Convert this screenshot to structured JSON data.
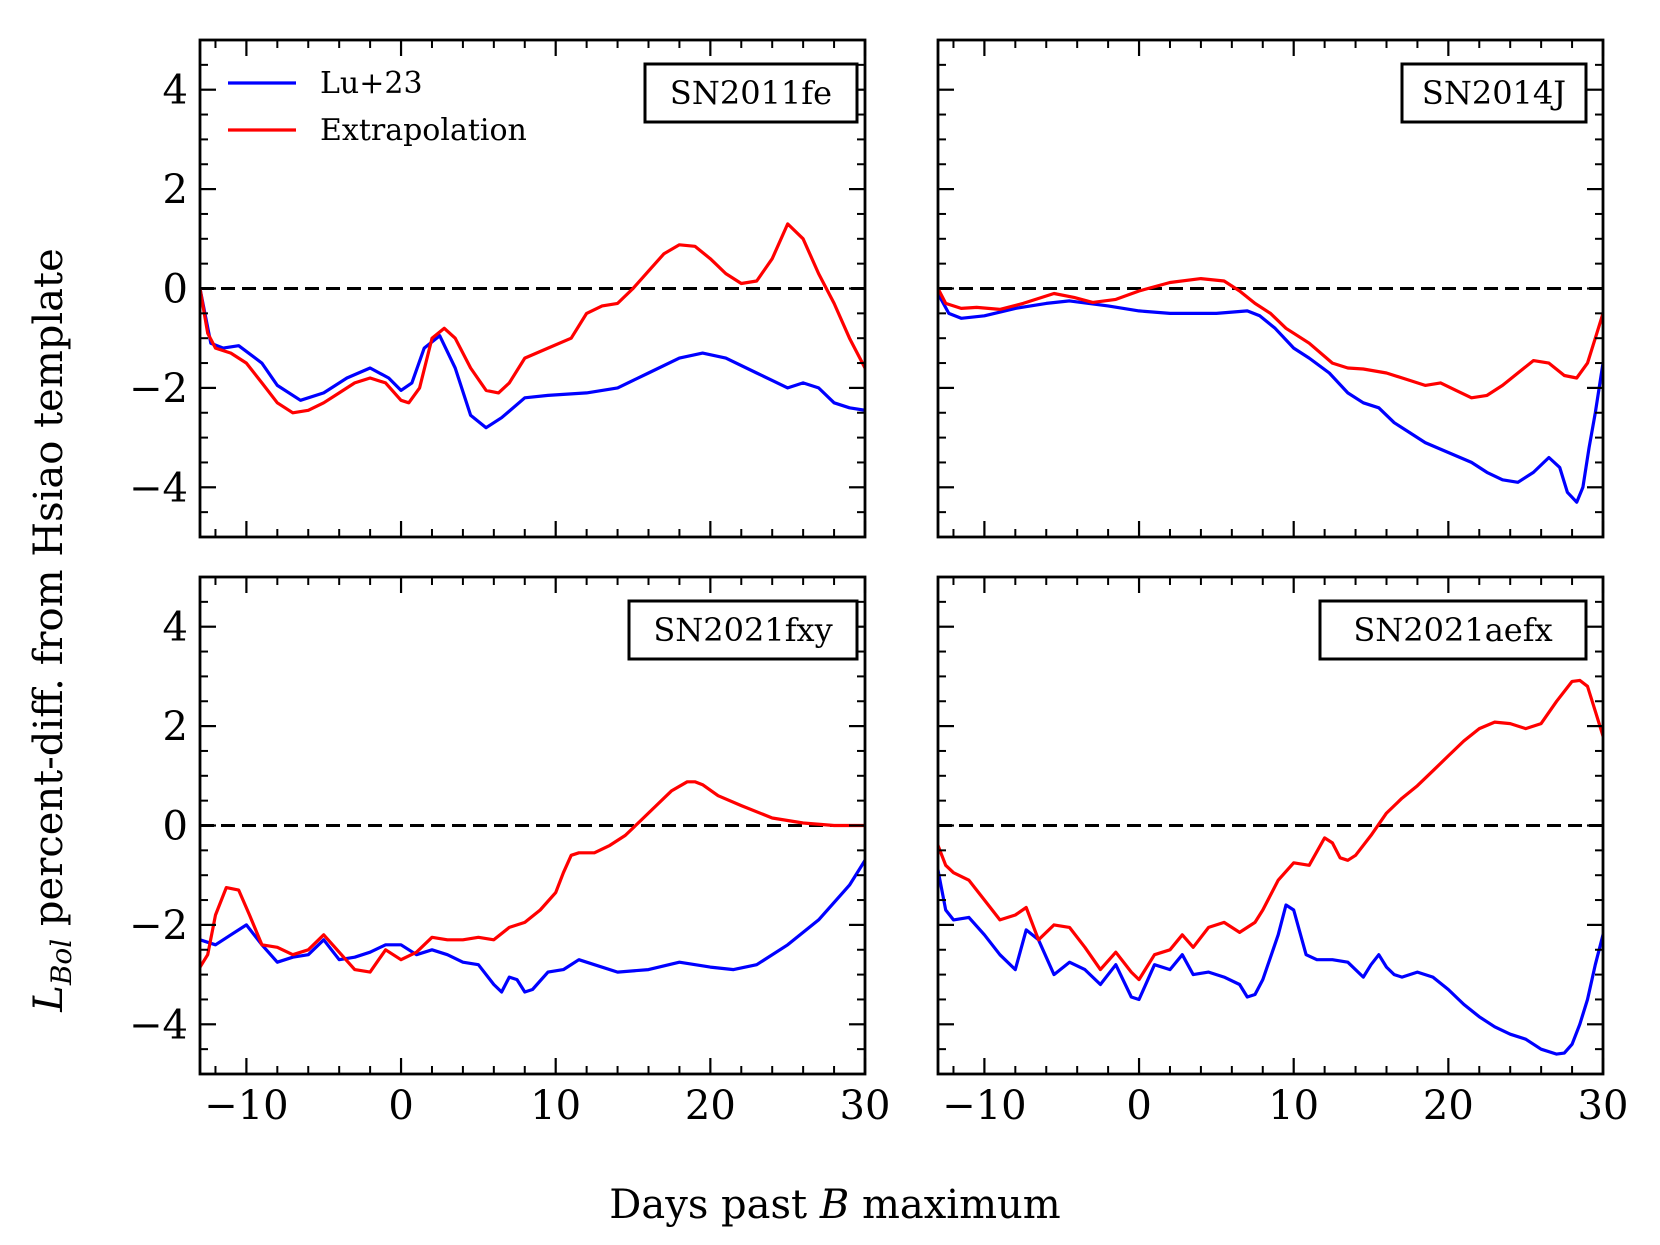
{
  "chart_data": {
    "type": "line",
    "layout": "2x2 grid, shared x and y axes",
    "xlabel_parts": [
      "Days past ",
      "B",
      " maximum"
    ],
    "ylabel_parts": [
      "L",
      "Bol",
      " percent-diff. from Hsiao template"
    ],
    "xlim": [
      -13,
      30
    ],
    "ylim": [
      -5,
      5
    ],
    "xticks": [
      -10,
      0,
      10,
      20,
      30
    ],
    "xtick_labels": [
      "−10",
      "0",
      "10",
      "20",
      "30"
    ],
    "yticks": [
      -4,
      -2,
      0,
      2,
      4
    ],
    "ytick_labels": [
      "−4",
      "−2",
      "0",
      "2",
      "4"
    ],
    "reference_line": {
      "y": 0,
      "style": "dashed",
      "color": "#000000"
    },
    "legend": {
      "location": "top-left of first panel",
      "entries": [
        {
          "label": "Lu+23",
          "color": "#0000ff"
        },
        {
          "label": "Extrapolation",
          "color": "#ff0000"
        }
      ]
    },
    "panels": [
      {
        "label": "SN2011fe",
        "series": [
          {
            "name": "Lu+23",
            "color": "#0000ff",
            "x": [
              -13,
              -12.3,
              -11.5,
              -10.5,
              -9,
              -8,
              -6.5,
              -5,
              -3.5,
              -2,
              -0.8,
              0,
              0.7,
              1.5,
              2.5,
              3.5,
              4.5,
              5.5,
              6.5,
              8,
              9.5,
              12,
              14,
              16,
              18,
              19.5,
              21,
              23,
              25,
              26,
              27,
              28,
              29,
              30
            ],
            "y": [
              0,
              -1.1,
              -1.2,
              -1.15,
              -1.5,
              -1.95,
              -2.25,
              -2.1,
              -1.8,
              -1.6,
              -1.8,
              -2.05,
              -1.9,
              -1.2,
              -0.95,
              -1.6,
              -2.55,
              -2.8,
              -2.6,
              -2.2,
              -2.15,
              -2.1,
              -2.0,
              -1.7,
              -1.4,
              -1.3,
              -1.4,
              -1.7,
              -2.0,
              -1.9,
              -2.0,
              -2.3,
              -2.4,
              -2.45
            ]
          },
          {
            "name": "Extrapolation",
            "color": "#ff0000",
            "x": [
              -13,
              -12.5,
              -12,
              -11,
              -10,
              -9,
              -8,
              -7,
              -6,
              -5,
              -4,
              -3,
              -2,
              -1,
              0,
              0.5,
              1.2,
              2,
              2.8,
              3.5,
              4.5,
              5.5,
              6.3,
              7,
              8,
              9.5,
              11,
              12,
              13,
              14,
              15,
              16,
              17,
              18,
              19,
              20,
              21,
              22,
              23,
              24,
              25,
              26,
              27,
              28,
              29,
              30
            ],
            "y": [
              0,
              -0.9,
              -1.2,
              -1.3,
              -1.5,
              -1.9,
              -2.3,
              -2.5,
              -2.45,
              -2.3,
              -2.1,
              -1.9,
              -1.8,
              -1.9,
              -2.25,
              -2.3,
              -2.0,
              -1.0,
              -0.8,
              -1.0,
              -1.6,
              -2.05,
              -2.1,
              -1.9,
              -1.4,
              -1.2,
              -1.0,
              -0.5,
              -0.35,
              -0.3,
              0.0,
              0.35,
              0.7,
              0.88,
              0.85,
              0.6,
              0.3,
              0.1,
              0.15,
              0.6,
              1.3,
              1.0,
              0.3,
              -0.3,
              -1.0,
              -1.6
            ]
          }
        ]
      },
      {
        "label": "SN2014J",
        "series": [
          {
            "name": "Lu+23",
            "color": "#0000ff",
            "x": [
              -13,
              -12.3,
              -11.5,
              -10,
              -8,
              -6,
              -4.5,
              -2,
              0,
              2,
              5,
              7,
              7.8,
              8.8,
              10,
              11,
              12.3,
              13.5,
              14.5,
              15.5,
              16.5,
              17.5,
              18.5,
              20,
              21.5,
              22.5,
              23.5,
              24.5,
              25.5,
              26.5,
              27.2,
              27.7,
              28.3,
              28.7,
              29.1,
              29.5,
              30
            ],
            "y": [
              -0.1,
              -0.5,
              -0.6,
              -0.55,
              -0.4,
              -0.3,
              -0.25,
              -0.35,
              -0.45,
              -0.5,
              -0.5,
              -0.45,
              -0.55,
              -0.8,
              -1.2,
              -1.4,
              -1.7,
              -2.1,
              -2.3,
              -2.4,
              -2.7,
              -2.9,
              -3.1,
              -3.3,
              -3.5,
              -3.7,
              -3.85,
              -3.9,
              -3.7,
              -3.4,
              -3.6,
              -4.1,
              -4.3,
              -4.0,
              -3.2,
              -2.5,
              -1.5
            ]
          },
          {
            "name": "Extrapolation",
            "color": "#ff0000",
            "x": [
              -13,
              -12.5,
              -11.5,
              -10.5,
              -9,
              -7.5,
              -5.5,
              -4.2,
              -3,
              -1.5,
              0,
              2,
              4,
              5.5,
              6.5,
              7.5,
              8.5,
              9.5,
              11,
              12.5,
              13.5,
              14.5,
              16,
              17.5,
              18.5,
              19.5,
              20.5,
              21.5,
              22.5,
              23.5,
              24.5,
              25.5,
              26.5,
              27.5,
              28.3,
              29,
              29.5,
              30
            ],
            "y": [
              0,
              -0.3,
              -0.4,
              -0.38,
              -0.42,
              -0.3,
              -0.1,
              -0.18,
              -0.28,
              -0.22,
              -0.05,
              0.12,
              0.2,
              0.15,
              -0.05,
              -0.3,
              -0.5,
              -0.8,
              -1.1,
              -1.5,
              -1.6,
              -1.62,
              -1.7,
              -1.85,
              -1.95,
              -1.9,
              -2.05,
              -2.2,
              -2.15,
              -1.95,
              -1.7,
              -1.45,
              -1.5,
              -1.75,
              -1.8,
              -1.5,
              -1.0,
              -0.5
            ]
          }
        ]
      },
      {
        "label": "SN2021fxy",
        "series": [
          {
            "name": "Lu+23",
            "color": "#0000ff",
            "x": [
              -13,
              -12,
              -11,
              -10,
              -9,
              -8,
              -7,
              -6,
              -5,
              -4,
              -3,
              -2,
              -1,
              0,
              1,
              2,
              3,
              4,
              5,
              6,
              6.5,
              7,
              7.5,
              8,
              8.5,
              9.5,
              10.5,
              11.5,
              12.5,
              14,
              16,
              18,
              20,
              21.5,
              23,
              25,
              27,
              29,
              30
            ],
            "y": [
              -2.3,
              -2.4,
              -2.2,
              -2.0,
              -2.4,
              -2.75,
              -2.65,
              -2.6,
              -2.3,
              -2.7,
              -2.65,
              -2.55,
              -2.4,
              -2.4,
              -2.6,
              -2.5,
              -2.6,
              -2.75,
              -2.8,
              -3.2,
              -3.35,
              -3.05,
              -3.1,
              -3.35,
              -3.3,
              -2.95,
              -2.9,
              -2.7,
              -2.8,
              -2.95,
              -2.9,
              -2.75,
              -2.85,
              -2.9,
              -2.8,
              -2.4,
              -1.9,
              -1.2,
              -0.7
            ]
          },
          {
            "name": "Extrapolation",
            "color": "#ff0000",
            "x": [
              -13,
              -12.5,
              -12,
              -11.3,
              -10.5,
              -9.8,
              -9,
              -8,
              -7,
              -6,
              -5,
              -4,
              -3,
              -2,
              -1,
              0,
              1,
              2,
              3,
              4,
              5,
              6,
              7,
              8,
              9,
              10,
              10.5,
              11,
              11.5,
              12.5,
              13.5,
              14.5,
              15.5,
              16.5,
              17.5,
              18.5,
              19,
              19.5,
              20.5,
              22,
              24,
              26,
              28,
              30
            ],
            "y": [
              -2.85,
              -2.6,
              -1.8,
              -1.25,
              -1.3,
              -1.8,
              -2.4,
              -2.45,
              -2.6,
              -2.5,
              -2.2,
              -2.55,
              -2.9,
              -2.95,
              -2.5,
              -2.7,
              -2.55,
              -2.25,
              -2.3,
              -2.3,
              -2.25,
              -2.3,
              -2.05,
              -1.95,
              -1.7,
              -1.35,
              -0.95,
              -0.6,
              -0.55,
              -0.55,
              -0.4,
              -0.2,
              0.1,
              0.4,
              0.7,
              0.88,
              0.88,
              0.82,
              0.6,
              0.4,
              0.15,
              0.05,
              0.0,
              0.0
            ]
          }
        ]
      },
      {
        "label": "SN2021aefx",
        "series": [
          {
            "name": "Lu+23",
            "color": "#0000ff",
            "x": [
              -13,
              -12.5,
              -12,
              -11,
              -10,
              -9,
              -8,
              -7.3,
              -6.5,
              -5.5,
              -4.5,
              -3.5,
              -2.5,
              -1.5,
              -0.5,
              0,
              1,
              2,
              2.8,
              3.5,
              4.5,
              5.5,
              6.5,
              7,
              7.5,
              8,
              9,
              9.5,
              10,
              10.8,
              11.5,
              12.5,
              13.5,
              14.5,
              15,
              15.5,
              16,
              16.5,
              17,
              18,
              19,
              20,
              21,
              22,
              23,
              24,
              25,
              26,
              27,
              27.5,
              28,
              28.5,
              29,
              29.5,
              30
            ],
            "y": [
              -0.9,
              -1.7,
              -1.9,
              -1.85,
              -2.2,
              -2.6,
              -2.9,
              -2.1,
              -2.3,
              -3.0,
              -2.75,
              -2.9,
              -3.2,
              -2.8,
              -3.45,
              -3.5,
              -2.8,
              -2.9,
              -2.6,
              -3.0,
              -2.95,
              -3.05,
              -3.2,
              -3.45,
              -3.4,
              -3.1,
              -2.2,
              -1.6,
              -1.7,
              -2.6,
              -2.7,
              -2.7,
              -2.75,
              -3.05,
              -2.8,
              -2.6,
              -2.85,
              -3.0,
              -3.05,
              -2.95,
              -3.05,
              -3.3,
              -3.6,
              -3.85,
              -4.05,
              -4.2,
              -4.3,
              -4.5,
              -4.6,
              -4.58,
              -4.4,
              -4.0,
              -3.5,
              -2.8,
              -2.2
            ]
          },
          {
            "name": "Extrapolation",
            "color": "#ff0000",
            "x": [
              -13,
              -12.5,
              -12,
              -11,
              -10,
              -9,
              -8,
              -7.3,
              -6.5,
              -5.5,
              -4.5,
              -3.5,
              -2.5,
              -1.5,
              -0.5,
              0,
              1,
              2,
              2.8,
              3.5,
              4.5,
              5.5,
              6.5,
              7,
              7.5,
              8,
              9,
              10,
              11,
              12,
              12.5,
              13,
              13.5,
              14,
              15,
              16,
              17,
              18,
              19,
              20,
              21,
              22,
              23,
              24,
              25,
              26,
              27,
              28,
              28.5,
              29,
              29.5,
              30
            ],
            "y": [
              -0.4,
              -0.8,
              -0.95,
              -1.1,
              -1.5,
              -1.9,
              -1.8,
              -1.65,
              -2.3,
              -2.0,
              -2.05,
              -2.45,
              -2.9,
              -2.55,
              -2.95,
              -3.1,
              -2.6,
              -2.5,
              -2.2,
              -2.45,
              -2.05,
              -1.95,
              -2.15,
              -2.05,
              -1.95,
              -1.7,
              -1.1,
              -0.75,
              -0.8,
              -0.25,
              -0.35,
              -0.65,
              -0.7,
              -0.6,
              -0.2,
              0.25,
              0.55,
              0.8,
              1.1,
              1.4,
              1.7,
              1.95,
              2.08,
              2.05,
              1.95,
              2.05,
              2.5,
              2.9,
              2.92,
              2.8,
              2.3,
              1.8
            ]
          }
        ]
      }
    ]
  }
}
